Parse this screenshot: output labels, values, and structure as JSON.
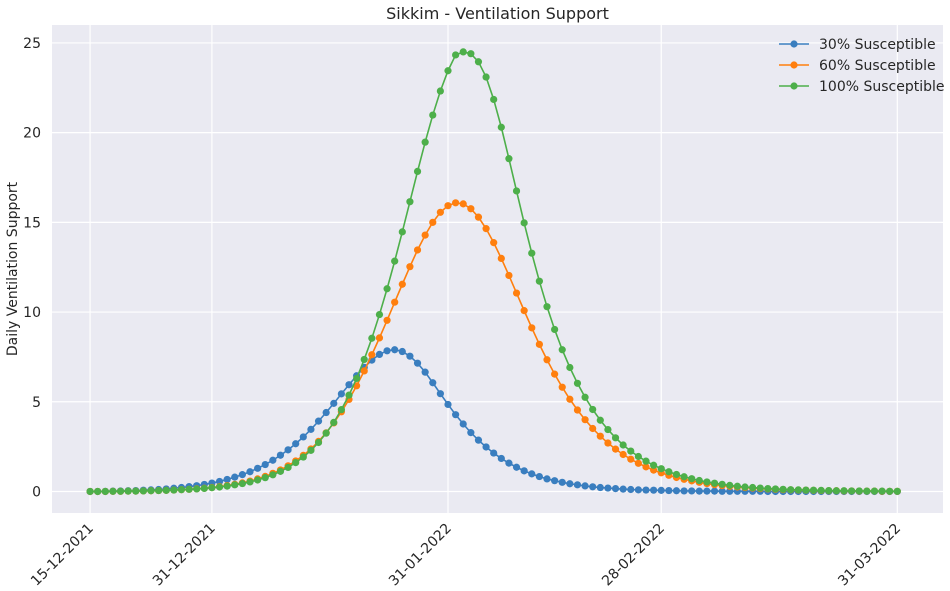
{
  "chart_data": {
    "type": "line",
    "title": "Sikkim - Ventilation Support",
    "xlabel": "",
    "ylabel": "Daily Ventilation Support",
    "x_start": "15-12-2021",
    "x_ticks": [
      {
        "label": "15-12-2021",
        "day": 0
      },
      {
        "label": "31-12-2021",
        "day": 16
      },
      {
        "label": "31-01-2022",
        "day": 47
      },
      {
        "label": "28-02-2022",
        "day": 75
      },
      {
        "label": "31-03-2022",
        "day": 106
      }
    ],
    "xlim_days": [
      -5,
      112
    ],
    "y_ticks": [
      0,
      5,
      10,
      15,
      20,
      25
    ],
    "ylim": [
      -1.2,
      26
    ],
    "grid": true,
    "legend_position": "top-right",
    "series": [
      {
        "name": "30% Susceptible",
        "color": "#3a7ebf",
        "values": [
          0.0,
          0.0,
          0.01,
          0.02,
          0.03,
          0.04,
          0.05,
          0.07,
          0.09,
          0.11,
          0.14,
          0.18,
          0.22,
          0.27,
          0.32,
          0.39,
          0.47,
          0.56,
          0.67,
          0.8,
          0.94,
          1.1,
          1.29,
          1.5,
          1.74,
          2.02,
          2.32,
          2.66,
          3.04,
          3.46,
          3.92,
          4.4,
          4.91,
          5.44,
          5.95,
          6.45,
          6.92,
          7.32,
          7.64,
          7.84,
          7.9,
          7.8,
          7.54,
          7.15,
          6.65,
          6.06,
          5.45,
          4.85,
          4.28,
          3.76,
          3.28,
          2.86,
          2.48,
          2.14,
          1.84,
          1.58,
          1.35,
          1.15,
          0.98,
          0.83,
          0.7,
          0.6,
          0.51,
          0.43,
          0.37,
          0.31,
          0.26,
          0.22,
          0.19,
          0.16,
          0.13,
          0.11,
          0.09,
          0.08,
          0.07,
          0.06,
          0.05,
          0.04,
          0.03,
          0.03,
          0.02,
          0.02,
          0.02,
          0.01,
          0.01,
          0.01,
          0.01,
          0.01,
          0.01,
          0.0,
          0.0,
          0.0,
          0.0,
          0.0,
          0.0,
          0.0,
          0.0,
          0.0,
          0.0,
          0.0,
          0.0,
          0.0,
          0.0,
          0.0,
          0.0,
          0.0,
          0.0
        ]
      },
      {
        "name": "60% Susceptible",
        "color": "#ff7f0e",
        "values": [
          0.0,
          0.0,
          0.0,
          0.01,
          0.01,
          0.02,
          0.02,
          0.03,
          0.04,
          0.05,
          0.06,
          0.08,
          0.1,
          0.12,
          0.15,
          0.18,
          0.22,
          0.27,
          0.33,
          0.4,
          0.48,
          0.58,
          0.7,
          0.84,
          1.01,
          1.2,
          1.43,
          1.7,
          2.01,
          2.37,
          2.79,
          3.27,
          3.82,
          4.44,
          5.13,
          5.89,
          6.72,
          7.62,
          8.56,
          9.54,
          10.55,
          11.55,
          12.53,
          13.46,
          14.29,
          15.0,
          15.56,
          15.93,
          16.09,
          16.03,
          15.76,
          15.29,
          14.65,
          13.87,
          12.99,
          12.04,
          11.06,
          10.08,
          9.12,
          8.2,
          7.34,
          6.54,
          5.81,
          5.14,
          4.54,
          4.0,
          3.51,
          3.08,
          2.7,
          2.36,
          2.06,
          1.8,
          1.57,
          1.37,
          1.19,
          1.04,
          0.9,
          0.78,
          0.68,
          0.59,
          0.51,
          0.44,
          0.38,
          0.33,
          0.29,
          0.25,
          0.22,
          0.19,
          0.16,
          0.14,
          0.12,
          0.1,
          0.09,
          0.08,
          0.07,
          0.06,
          0.05,
          0.04,
          0.04,
          0.03,
          0.03,
          0.02,
          0.02,
          0.02,
          0.01,
          0.01,
          0.01
        ]
      },
      {
        "name": "100% Susceptible",
        "color": "#4daf4a",
        "values": [
          0.0,
          0.0,
          0.0,
          0.01,
          0.01,
          0.02,
          0.02,
          0.03,
          0.04,
          0.05,
          0.06,
          0.08,
          0.1,
          0.12,
          0.14,
          0.17,
          0.21,
          0.25,
          0.3,
          0.37,
          0.44,
          0.53,
          0.64,
          0.77,
          0.93,
          1.12,
          1.34,
          1.61,
          1.92,
          2.29,
          2.73,
          3.25,
          3.85,
          4.56,
          5.37,
          6.3,
          7.36,
          8.54,
          9.86,
          11.3,
          12.84,
          14.47,
          16.15,
          17.84,
          19.47,
          20.98,
          22.32,
          23.45,
          24.33,
          24.5,
          24.4,
          23.95,
          23.1,
          21.85,
          20.3,
          18.55,
          16.75,
          14.97,
          13.28,
          11.72,
          10.3,
          9.03,
          7.9,
          6.91,
          6.03,
          5.25,
          4.57,
          3.97,
          3.45,
          2.99,
          2.59,
          2.25,
          1.95,
          1.69,
          1.46,
          1.27,
          1.1,
          0.95,
          0.82,
          0.71,
          0.61,
          0.53,
          0.46,
          0.4,
          0.34,
          0.29,
          0.25,
          0.22,
          0.19,
          0.16,
          0.14,
          0.12,
          0.1,
          0.09,
          0.08,
          0.07,
          0.06,
          0.05,
          0.04,
          0.04,
          0.03,
          0.03,
          0.02,
          0.02,
          0.02,
          0.01,
          0.01
        ]
      }
    ]
  }
}
